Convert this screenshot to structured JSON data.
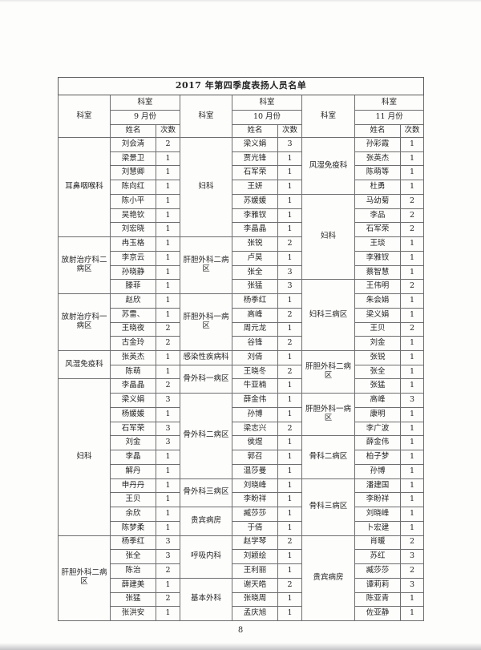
{
  "page_number": "8",
  "table": {
    "title": "2017 年第四季度表扬人员名单",
    "header": {
      "dept_col": "科室",
      "group_dept": "科室",
      "name": "姓名",
      "count": "次数"
    },
    "months": [
      "9 月份",
      "10 月份",
      "11 月份"
    ],
    "columns": [
      {
        "sections": [
          {
            "dept": "耳鼻咽喉科",
            "rows": [
              [
                "刘会清",
                "2"
              ],
              [
                "梁景卫",
                "1"
              ],
              [
                "刘慧卿",
                "1"
              ],
              [
                "陈向红",
                "1"
              ],
              [
                "陈小平",
                "1"
              ],
              [
                "吴艳钦",
                "1"
              ],
              [
                "刘宏晓",
                "1"
              ]
            ]
          },
          {
            "dept": "放射治疗科二病区",
            "rows": [
              [
                "冉玉格",
                "1"
              ],
              [
                "李京云",
                "1"
              ],
              [
                "孙晓静",
                "1"
              ],
              [
                "滕菲",
                "1"
              ]
            ]
          },
          {
            "dept": "放射治疗科一病区",
            "rows": [
              [
                "赵欣",
                "1"
              ],
              [
                "苏雷、",
                "1"
              ],
              [
                "王晓夜",
                "2"
              ],
              [
                "古金玲",
                "2"
              ]
            ]
          },
          {
            "dept": "风湿免疫科",
            "rows": [
              [
                "张英杰",
                "1"
              ],
              [
                "陈萌",
                "1"
              ]
            ]
          },
          {
            "dept": "妇科",
            "rows": [
              [
                "李晶晶",
                "2"
              ],
              [
                "梁义娟",
                "3"
              ],
              [
                "杨媛媛",
                "1"
              ],
              [
                "石军荣",
                "3"
              ],
              [
                "刘金",
                "3"
              ],
              [
                "李晶",
                "1"
              ],
              [
                "解丹",
                "1"
              ],
              [
                "申丹丹",
                "1"
              ],
              [
                "王贝",
                "1"
              ],
              [
                "余欣",
                "1"
              ],
              [
                "陈梦柔",
                "1"
              ]
            ]
          },
          {
            "dept": "肝胆外科二病区",
            "rows": [
              [
                "杨季红",
                "3"
              ],
              [
                "张全",
                "3"
              ],
              [
                "陈治",
                "2"
              ],
              [
                "薛建美",
                "1"
              ],
              [
                "张猛",
                "2"
              ],
              [
                "张洪安",
                "1"
              ]
            ]
          }
        ]
      },
      {
        "sections": [
          {
            "dept": "妇科",
            "rows": [
              [
                "梁义娟",
                "3"
              ],
              [
                "贾光锋",
                "1"
              ],
              [
                "石军荣",
                "1"
              ],
              [
                "王妍",
                "1"
              ],
              [
                "苏媛媛",
                "1"
              ],
              [
                "李雅钗",
                "1"
              ],
              [
                "李晶晶",
                "1"
              ]
            ]
          },
          {
            "dept": "肝胆外科二病区",
            "rows": [
              [
                "张锐",
                "2"
              ],
              [
                "卢昊",
                "1"
              ],
              [
                "张全",
                "3"
              ],
              [
                "张猛",
                "3"
              ]
            ]
          },
          {
            "dept": "肝胆外科一病区",
            "rows": [
              [
                "杨季红",
                "1"
              ],
              [
                "高峰",
                "2"
              ],
              [
                "周元龙",
                "1"
              ],
              [
                "谷锋",
                "2"
              ]
            ]
          },
          {
            "dept": "感染性疾病科",
            "rows": [
              [
                "刘倩",
                "1"
              ]
            ]
          },
          {
            "dept": "骨外科一病区",
            "rows": [
              [
                "王晓冬",
                "2"
              ],
              [
                "牛亚楠",
                "1"
              ]
            ]
          },
          {
            "dept": "骨外科二病区",
            "rows": [
              [
                "薛金伟",
                "1"
              ],
              [
                "孙博",
                "1"
              ],
              [
                "梁志兴",
                "2"
              ],
              [
                "侯煜",
                "1"
              ],
              [
                "郭召",
                "1"
              ],
              [
                "温莎曼",
                "1"
              ]
            ]
          },
          {
            "dept": "骨外科三病区",
            "rows": [
              [
                "刘晓峰",
                "1"
              ],
              [
                "李盼祥",
                "1"
              ]
            ]
          },
          {
            "dept": "贵宾病房",
            "rows": [
              [
                "臧莎莎",
                "1"
              ],
              [
                "于倩",
                "1"
              ]
            ]
          },
          {
            "dept": "呼吸内科",
            "rows": [
              [
                "赵学琴",
                "2"
              ],
              [
                "刘颖绘",
                "1"
              ],
              [
                "王利丽",
                "1"
              ]
            ]
          },
          {
            "dept": "基本外科",
            "rows": [
              [
                "谢天皓",
                "2"
              ],
              [
                "张晓周",
                "1"
              ],
              [
                "孟庆旭",
                "1"
              ]
            ]
          }
        ]
      },
      {
        "sections": [
          {
            "dept": "风湿免疫科",
            "rows": [
              [
                "孙彩霞",
                "1"
              ],
              [
                "张英杰",
                "1"
              ],
              [
                "陈萌等",
                "1"
              ],
              [
                "杜勇",
                "1"
              ]
            ]
          },
          {
            "dept": "妇科",
            "rows": [
              [
                "马幼菊",
                "2"
              ],
              [
                "李品",
                "2"
              ],
              [
                "石军荣",
                "2"
              ],
              [
                "王琰",
                "1"
              ],
              [
                "李雅钗",
                "1"
              ],
              [
                "蔡智慧",
                "1"
              ]
            ]
          },
          {
            "dept": "妇科三病区",
            "rows": [
              [
                "王伟明",
                "2"
              ],
              [
                "朱会娟",
                "1"
              ],
              [
                "梁义娟",
                "1"
              ],
              [
                "王贝",
                "2"
              ],
              [
                "刘金",
                "1"
              ]
            ]
          },
          {
            "dept": "肝胆外科二病区",
            "rows": [
              [
                "张锐",
                "1"
              ],
              [
                "张全",
                "1"
              ],
              [
                "张猛",
                "1"
              ]
            ]
          },
          {
            "dept": "肝胆外科一病区",
            "rows": [
              [
                "高峰",
                "3"
              ],
              [
                "康明",
                "1"
              ],
              [
                "李广波",
                "1"
              ]
            ]
          },
          {
            "dept": "骨科二病区",
            "rows": [
              [
                "薛金伟",
                "1"
              ],
              [
                "柏子梦",
                "1"
              ],
              [
                "孙博",
                "1"
              ]
            ]
          },
          {
            "dept": "骨科三病区",
            "rows": [
              [
                "潘建国",
                "1"
              ],
              [
                "李盼祥",
                "1"
              ],
              [
                "刘晓峰",
                "1"
              ],
              [
                "卜宏建",
                "1"
              ]
            ]
          },
          {
            "dept": "贵宾病房",
            "rows": [
              [
                "肖暖",
                "2"
              ],
              [
                "苏红",
                "3"
              ],
              [
                "臧莎莎",
                "2"
              ],
              [
                "谭莉莉",
                "3"
              ],
              [
                "陈亚青",
                "1"
              ],
              [
                "佐亚静",
                "1"
              ]
            ]
          }
        ]
      }
    ]
  }
}
